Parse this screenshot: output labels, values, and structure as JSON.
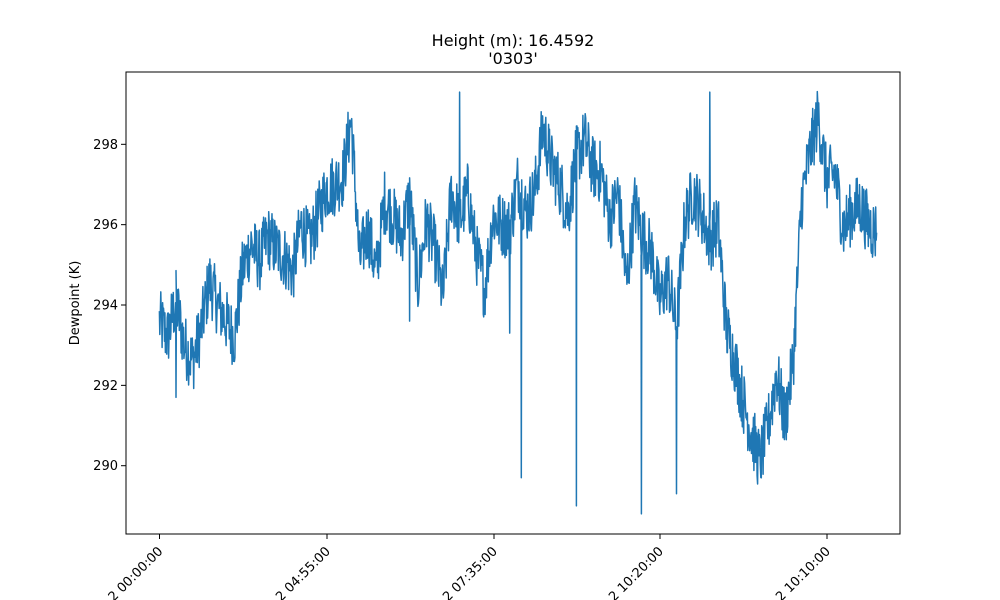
{
  "chart_data": {
    "type": "line",
    "title": "Height (m): 16.4592",
    "subtitle": "'0303'",
    "xlabel": "",
    "ylabel": "Dewpoint (K)",
    "ylim": [
      288.3,
      299.8
    ],
    "yticks": [
      290,
      292,
      294,
      296,
      298
    ],
    "xticks": [
      "2 00:00:00",
      "2 04:55:00",
      "2 07:35:00",
      "2 10:20:00",
      "2 10:10:00"
    ],
    "grid": false,
    "color": "#1f77b4",
    "series": [
      {
        "x": [
          0.0,
          0.05,
          0.1,
          0.15,
          0.2,
          0.25,
          0.3,
          0.35,
          0.4,
          0.45,
          0.5,
          0.55,
          0.6,
          0.65,
          0.7,
          0.75,
          0.8,
          0.85,
          0.9,
          0.95,
          1.0,
          1.05,
          1.1,
          1.15,
          1.2,
          1.25,
          1.3,
          1.35,
          1.4,
          1.45,
          1.5,
          1.55,
          1.6,
          1.65,
          1.7,
          1.75,
          1.8,
          1.85,
          1.9,
          1.95,
          2.0,
          2.05,
          2.1,
          2.15,
          2.2,
          2.25,
          2.3,
          2.35,
          2.4,
          2.45,
          2.5,
          2.55,
          2.6,
          2.65,
          2.7,
          2.75,
          2.8,
          2.85,
          2.9,
          2.95,
          3.0,
          3.05,
          3.1,
          3.15,
          3.2,
          3.25,
          3.3,
          3.35,
          3.4,
          3.45,
          3.5,
          3.55,
          3.6,
          3.65,
          3.7,
          3.75,
          3.8,
          3.85,
          3.9,
          3.95,
          4.0,
          4.05,
          4.1,
          4.15,
          4.2,
          4.25,
          4.3
        ],
        "values": [
          293.6,
          293.2,
          294.1,
          293.0,
          292.6,
          293.4,
          294.6,
          294.0,
          293.6,
          293.2,
          294.9,
          295.5,
          295.1,
          295.7,
          295.4,
          295.2,
          294.8,
          296.0,
          295.5,
          296.2,
          296.9,
          297.0,
          297.2,
          298.6,
          295.1,
          295.9,
          294.8,
          296.6,
          296.2,
          295.7,
          296.7,
          294.5,
          296.1,
          295.4,
          294.2,
          296.8,
          296.1,
          296.8,
          295.3,
          294.4,
          296.2,
          296.0,
          295.9,
          297.1,
          296.3,
          296.8,
          298.4,
          297.5,
          297.0,
          296.3,
          297.7,
          298.1,
          297.4,
          297.3,
          296.1,
          296.8,
          294.5,
          296.5,
          295.7,
          295.3,
          294.1,
          294.7,
          293.4,
          296.1,
          296.8,
          296.3,
          295.6,
          296.0,
          293.4,
          292.6,
          291.6,
          290.8,
          290.1,
          291.0,
          292.3,
          291.1,
          292.6,
          296.6,
          297.8,
          298.7,
          297.1,
          297.3,
          295.9,
          296.3,
          296.5,
          296.0,
          295.8
        ],
        "extremes": [
          {
            "x": 1.5,
            "y": 293.6
          },
          {
            "x": 2.1,
            "y": 293.3
          },
          {
            "x": 2.17,
            "y": 289.7
          },
          {
            "x": 2.5,
            "y": 289.0
          },
          {
            "x": 2.89,
            "y": 288.8
          },
          {
            "x": 3.1,
            "y": 289.3
          },
          {
            "x": 1.8,
            "y": 299.3
          },
          {
            "x": 3.3,
            "y": 299.3
          },
          {
            "x": 0.1,
            "y": 291.7
          }
        ]
      }
    ]
  }
}
